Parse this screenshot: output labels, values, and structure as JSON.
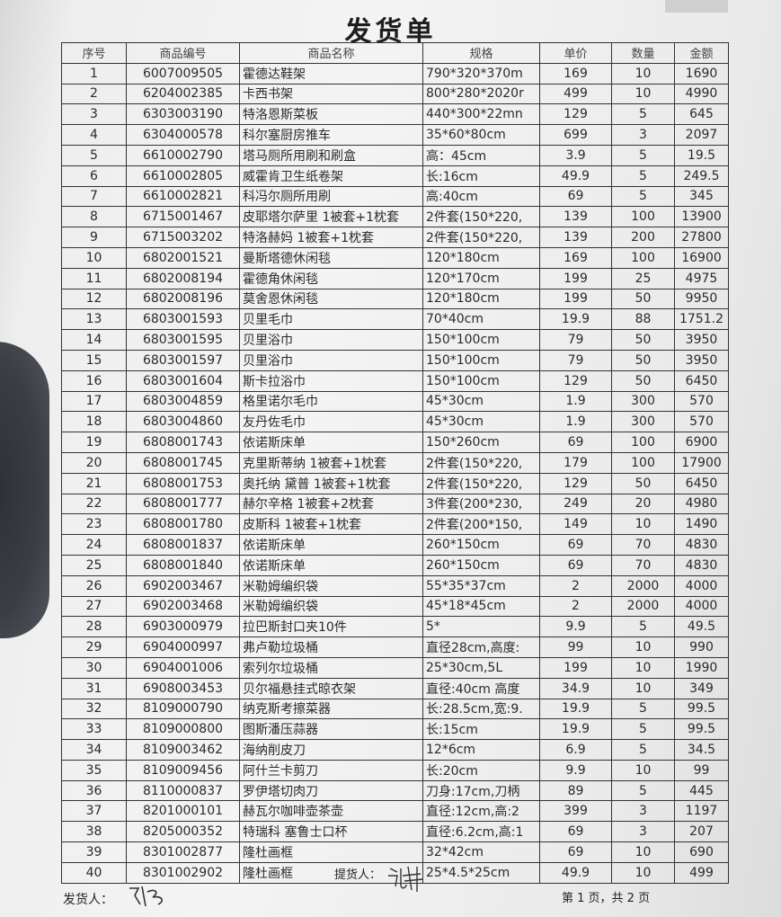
{
  "title": "发货单",
  "columns": [
    "序号",
    "商品编号",
    "商品名称",
    "规格",
    "单价",
    "数量",
    "金额"
  ],
  "rows": [
    [
      "1",
      "6007009505",
      "霍德达鞋架",
      "790*320*370m",
      "169",
      "10",
      "1690"
    ],
    [
      "2",
      "6204002385",
      "卡西书架",
      "800*280*2020r",
      "499",
      "10",
      "4990"
    ],
    [
      "3",
      "6303003190",
      "特洛恩斯菜板",
      "440*300*22mn",
      "129",
      "5",
      "645"
    ],
    [
      "4",
      "6304000578",
      "科尔塞厨房推车",
      "35*60*80cm",
      "699",
      "3",
      "2097"
    ],
    [
      "5",
      "6610002790",
      "塔马厕所用刷和刷盒",
      "高：45cm",
      "3.9",
      "5",
      "19.5"
    ],
    [
      "6",
      "6610002805",
      "威霍肯卫生纸卷架",
      "长:16cm",
      "49.9",
      "5",
      "249.5"
    ],
    [
      "7",
      "6610002821",
      "科冯尔厕所用刷",
      "高:40cm",
      "69",
      "5",
      "345"
    ],
    [
      "8",
      "6715001467",
      "皮耶塔尔萨里 1被套+1枕套",
      "2件套(150*220,",
      "139",
      "100",
      "13900"
    ],
    [
      "9",
      "6715003202",
      "特洛赫妈 1被套+1枕套",
      "2件套(150*220,",
      "139",
      "200",
      "27800"
    ],
    [
      "10",
      "6802001521",
      "曼斯塔德休闲毯",
      "120*180cm",
      "169",
      "100",
      "16900"
    ],
    [
      "11",
      "6802008194",
      "霍德角休闲毯",
      "120*170cm",
      "199",
      "25",
      "4975"
    ],
    [
      "12",
      "6802008196",
      "莫舍恩休闲毯",
      "120*180cm",
      "199",
      "50",
      "9950"
    ],
    [
      "13",
      "6803001593",
      "贝里毛巾",
      "70*40cm",
      "19.9",
      "88",
      "1751.2"
    ],
    [
      "14",
      "6803001595",
      "贝里浴巾",
      "150*100cm",
      "79",
      "50",
      "3950"
    ],
    [
      "15",
      "6803001597",
      "贝里浴巾",
      "150*100cm",
      "79",
      "50",
      "3950"
    ],
    [
      "16",
      "6803001604",
      "斯卡拉浴巾",
      "150*100cm",
      "129",
      "50",
      "6450"
    ],
    [
      "17",
      "6803004859",
      "格里诺尔毛巾",
      "45*30cm",
      "1.9",
      "300",
      "570"
    ],
    [
      "18",
      "6803004860",
      "友丹佐毛巾",
      "45*30cm",
      "1.9",
      "300",
      "570"
    ],
    [
      "19",
      "6808001743",
      "依诺斯床单",
      "150*260cm",
      "69",
      "100",
      "6900"
    ],
    [
      "20",
      "6808001745",
      "克里斯蒂纳 1被套+1枕套",
      "2件套(150*220,",
      "179",
      "100",
      "17900"
    ],
    [
      "21",
      "6808001753",
      "奥托纳 黛普 1被套+1枕套",
      "2件套(150*220,",
      "129",
      "50",
      "6450"
    ],
    [
      "22",
      "6808001777",
      "赫尔辛格 1被套+2枕套",
      "3件套(200*230,",
      "249",
      "20",
      "4980"
    ],
    [
      "23",
      "6808001780",
      "皮斯科 1被套+1枕套",
      "2件套(200*150,",
      "149",
      "10",
      "1490"
    ],
    [
      "24",
      "6808001837",
      "依诺斯床单",
      "260*150cm",
      "69",
      "70",
      "4830"
    ],
    [
      "25",
      "6808001840",
      "依诺斯床单",
      "260*150cm",
      "69",
      "70",
      "4830"
    ],
    [
      "26",
      "6902003467",
      "米勒姆编织袋",
      "55*35*37cm",
      "2",
      "2000",
      "4000"
    ],
    [
      "27",
      "6902003468",
      "米勒姆编织袋",
      "45*18*45cm",
      "2",
      "2000",
      "4000"
    ],
    [
      "28",
      "6903000979",
      "拉巴斯封口夹10件",
      "5*",
      "9.9",
      "5",
      "49.5"
    ],
    [
      "29",
      "6904000997",
      "弗卢勒垃圾桶",
      "直径28cm,高度:",
      "99",
      "10",
      "990"
    ],
    [
      "30",
      "6904001006",
      "索列尔垃圾桶",
      "25*30cm,5L",
      "199",
      "10",
      "1990"
    ],
    [
      "31",
      "6908003453",
      "贝尔福悬挂式晾衣架",
      "直径:40cm 高度",
      "34.9",
      "10",
      "349"
    ],
    [
      "32",
      "8109000790",
      "纳克斯考擦菜器",
      "长:28.5cm,宽:9.",
      "19.9",
      "5",
      "99.5"
    ],
    [
      "33",
      "8109000800",
      "图斯潘压蒜器",
      "长:15cm",
      "19.9",
      "5",
      "99.5"
    ],
    [
      "34",
      "8109003462",
      "海纳削皮刀",
      "12*6cm",
      "6.9",
      "5",
      "34.5"
    ],
    [
      "35",
      "8109009456",
      "阿什兰卡剪刀",
      "长:20cm",
      "9.9",
      "10",
      "99"
    ],
    [
      "36",
      "8110000837",
      "罗伊塔切肉刀",
      "刀身:17cm,刀柄",
      "89",
      "5",
      "445"
    ],
    [
      "37",
      "8201000101",
      "赫瓦尔咖啡壶茶壶",
      "直径:12cm,高:2",
      "399",
      "3",
      "1197"
    ],
    [
      "38",
      "8205000352",
      "特瑞科 塞鲁士口杯",
      "直径:6.2cm,高:1",
      "69",
      "3",
      "207"
    ],
    [
      "39",
      "8301002877",
      "隆杜画框",
      "32*42cm",
      "69",
      "10",
      "690"
    ],
    [
      "40",
      "8301002902",
      "隆杜画框",
      "25*4.5*25cm",
      "49.9",
      "10",
      "499"
    ]
  ],
  "footer": {
    "shipper_label": "发货人：",
    "receiver_label": "提货人：",
    "page_info": "第 1 页，共 2 页"
  }
}
